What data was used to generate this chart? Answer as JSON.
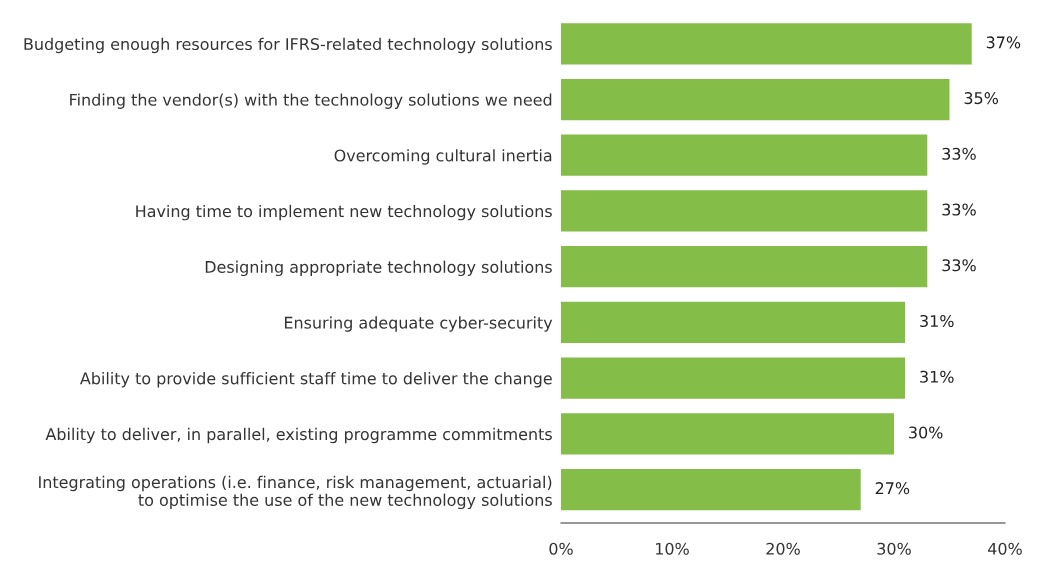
{
  "chart_data": {
    "type": "bar",
    "orientation": "horizontal",
    "categories": [
      "Budgeting enough resources for IFRS-related technology solutions",
      "Finding the vendor(s) with the technology solutions we need",
      "Overcoming cultural inertia",
      "Having time to implement new technology solutions",
      "Designing appropriate technology solutions",
      "Ensuring adequate cyber-security",
      "Ability to provide sufficient staff time to deliver the change",
      "Ability to deliver, in parallel, existing programme commitments",
      "Integrating operations (i.e. finance, risk management, actuarial)\nto optimise the use of the new technology solutions"
    ],
    "values": [
      37,
      35,
      33,
      33,
      33,
      31,
      31,
      30,
      27
    ],
    "value_labels": [
      "37%",
      "35%",
      "33%",
      "33%",
      "33%",
      "31%",
      "31%",
      "30%",
      "27%"
    ],
    "color": "#84bd47",
    "xlim": [
      0,
      40
    ],
    "xticks": [
      {
        "value": 0,
        "label": "0%"
      },
      {
        "value": 10,
        "label": "10%"
      },
      {
        "value": 20,
        "label": "20%"
      },
      {
        "value": 30,
        "label": "30%"
      },
      {
        "value": 40,
        "label": "40%"
      }
    ],
    "grid": false,
    "legend": false
  }
}
